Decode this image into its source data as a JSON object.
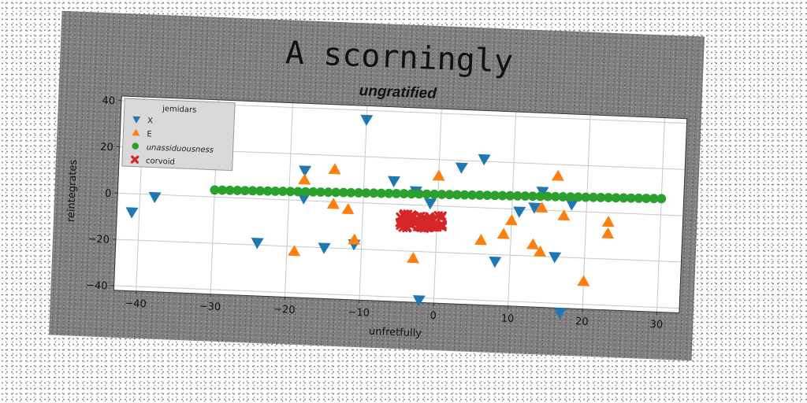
{
  "chart_data": {
    "type": "scatter",
    "suptitle": "A scorningly",
    "title": "ungratified",
    "xlabel": "unfretfully",
    "ylabel": "reintegrates",
    "xlim": [
      -43,
      33
    ],
    "ylim": [
      -42,
      42
    ],
    "xticks": [
      -40,
      -30,
      -20,
      -10,
      0,
      10,
      20,
      30
    ],
    "yticks": [
      -40,
      -20,
      0,
      20,
      40
    ],
    "grid": true,
    "legend": {
      "title": "jemidars",
      "placement": "top-left"
    },
    "series": [
      {
        "name": "X",
        "marker": "triangle-down",
        "color": "#1f77b4",
        "points": [
          [
            -41,
            -8
          ],
          [
            -38,
            -1
          ],
          [
            -24,
            -19
          ],
          [
            -18,
            13
          ],
          [
            -18,
            1
          ],
          [
            -15,
            -20
          ],
          [
            -11,
            -18
          ],
          [
            -10,
            36
          ],
          [
            -6,
            10
          ],
          [
            -3,
            6
          ],
          [
            -2,
            -41
          ],
          [
            -1,
            1
          ],
          [
            3,
            17
          ],
          [
            6,
            21
          ],
          [
            8,
            -23
          ],
          [
            11,
            -1
          ],
          [
            13,
            1
          ],
          [
            14,
            8
          ],
          [
            16,
            -20
          ],
          [
            17,
            -44
          ],
          [
            18,
            3
          ]
        ]
      },
      {
        "name": "E",
        "marker": "triangle-up",
        "color": "#ff7f0e",
        "points": [
          [
            -19,
            -22
          ],
          [
            -18,
            9
          ],
          [
            -14,
            14
          ],
          [
            -14,
            -1
          ],
          [
            -12,
            -3
          ],
          [
            -11,
            -16
          ],
          [
            -3,
            -23
          ],
          [
            0,
            13
          ],
          [
            6,
            -14
          ],
          [
            9,
            -11
          ],
          [
            10,
            -5
          ],
          [
            13,
            -15
          ],
          [
            14,
            -18
          ],
          [
            14,
            1
          ],
          [
            16,
            15
          ],
          [
            17,
            -2
          ],
          [
            20,
            -30
          ],
          [
            23,
            -9
          ],
          [
            23,
            -4
          ]
        ]
      },
      {
        "name": "unassiduousness",
        "marker": "circle",
        "color": "#2ca02c",
        "line": {
          "from": [
            -30,
            3
          ],
          "to": [
            30,
            7
          ],
          "count": 60
        }
      },
      {
        "name": "corvoid",
        "marker": "x",
        "color": "#d62728",
        "cluster": {
          "x": [
            -5,
            1
          ],
          "y": [
            -10,
            -4
          ],
          "count": 70
        }
      }
    ]
  }
}
